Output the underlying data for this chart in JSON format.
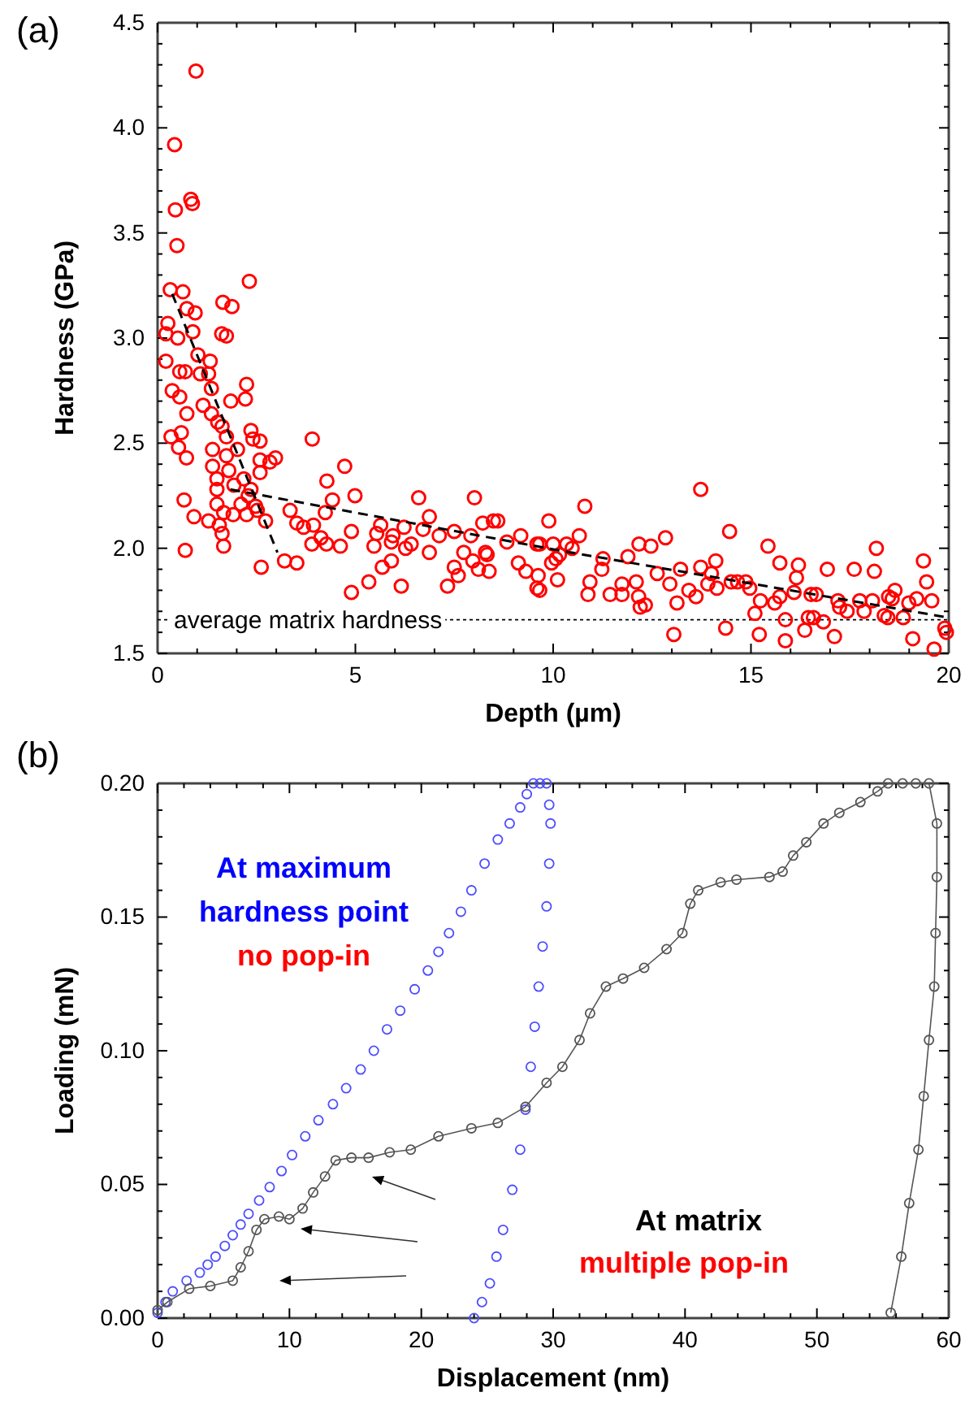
{
  "chart_data": [
    {
      "type": "scatter",
      "xlabel": "Depth (µm)",
      "ylabel": "Hardness (GPa)",
      "annotations": [
        "(a)"
      ],
      "marker": "circle",
      "grid": false,
      "xlim": [
        0,
        20
      ],
      "xticks": [
        0,
        {
          "value": 1,
          "label": null
        },
        {
          "value": 2,
          "label": null
        },
        {
          "value": 3,
          "label": null
        },
        {
          "value": 4,
          "label": null
        },
        5,
        {
          "value": 6,
          "label": null
        },
        {
          "value": 7,
          "label": null
        },
        {
          "value": 8,
          "label": null
        },
        {
          "value": 9,
          "label": null
        },
        10,
        {
          "value": 11,
          "label": null
        },
        {
          "value": 12,
          "label": null
        },
        {
          "value": 13,
          "label": null
        },
        {
          "value": 14,
          "label": null
        },
        15,
        {
          "value": 16,
          "label": null
        },
        {
          "value": 17,
          "label": null
        },
        {
          "value": 18,
          "label": null
        },
        {
          "value": 19,
          "label": null
        },
        20
      ],
      "ylim": [
        1.5,
        4.5
      ],
      "yticks": [
        {
          "value": 1.5,
          "label": "1.5"
        },
        {
          "value": 1.6,
          "label": null
        },
        {
          "value": 1.7,
          "label": null
        },
        {
          "value": 1.8,
          "label": null
        },
        {
          "value": 1.9,
          "label": null
        },
        {
          "value": 2.0,
          "label": "2.0"
        },
        {
          "value": 2.1,
          "label": null
        },
        {
          "value": 2.2,
          "label": null
        },
        {
          "value": 2.3,
          "label": null
        },
        {
          "value": 2.4,
          "label": null
        },
        {
          "value": 2.5,
          "label": "2.5"
        },
        {
          "value": 2.6,
          "label": null
        },
        {
          "value": 2.7,
          "label": null
        },
        {
          "value": 2.8,
          "label": null
        },
        {
          "value": 2.9,
          "label": null
        },
        {
          "value": 3.0,
          "label": "3.0"
        },
        {
          "value": 3.1,
          "label": null
        },
        {
          "value": 3.2,
          "label": null
        },
        {
          "value": 3.3,
          "label": null
        },
        {
          "value": 3.4,
          "label": null
        },
        {
          "value": 3.5,
          "label": "3.5"
        },
        {
          "value": 3.6,
          "label": null
        },
        {
          "value": 3.7,
          "label": null
        },
        {
          "value": 3.8,
          "label": null
        },
        {
          "value": 3.9,
          "label": null
        },
        {
          "value": 4.0,
          "label": "4.0"
        },
        {
          "value": 4.1,
          "label": null
        },
        {
          "value": 4.2,
          "label": null
        },
        {
          "value": 4.3,
          "label": null
        },
        {
          "value": 4.4,
          "label": null
        },
        {
          "value": 4.5,
          "label": "4.5"
        }
      ],
      "ref_lines": [
        {
          "axis": "y",
          "value": 1.66,
          "label": "average matrix hardness",
          "line_style": "dotted",
          "color": "#000000"
        }
      ],
      "series": [
        {
          "color": "#ff0000",
          "x": [
            0.97,
            0.43,
            0.84,
            0.88,
            0.45,
            0.49,
            0.32,
            0.64,
            2.32,
            1.65,
            1.88,
            0.74,
            0.95,
            0.89,
            0.26,
            0.21,
            0.51,
            1.62,
            1.74,
            1.02,
            0.21,
            1.33,
            1.08,
            1.29,
            0.7,
            0.56,
            1.36,
            2.25,
            2.22,
            0.37,
            0.56,
            1.85,
            1.15,
            1.36,
            0.74,
            1.52,
            1.63,
            2.36,
            2.41,
            2.59,
            1.74,
            3.91,
            0.34,
            0.6,
            0.53,
            1.39,
            2.02,
            1.74,
            0.73,
            2.59,
            2.98,
            1.39,
            1.8,
            4.73,
            2.84,
            1.5,
            2.18,
            2.59,
            4.28,
            1.93,
            1.5,
            2.36,
            2.29,
            4.99,
            4.42,
            6.6,
            8.01,
            0.67,
            1.5,
            2.11,
            4.24,
            2.48,
            2.52,
            3.35,
            1.67,
            1.91,
            2.25,
            0.92,
            1.29,
            2.73,
            3.52,
            3.69,
            3.94,
            1.56,
            5.64,
            6.23,
            6.87,
            8.49,
            8.6,
            9.89,
            8.22,
            1.63,
            4.9,
            5.54,
            5.95,
            6.71,
            7.12,
            7.5,
            7.92,
            9.18,
            4.13,
            3.9,
            4.27,
            4.62,
            5.47,
            1.67,
            6.27,
            6.41,
            5.91,
            8.83,
            9.59,
            10.0,
            0.7,
            7.74,
            6.87,
            8.29,
            7.97,
            8.33,
            3.21,
            3.52,
            2.62,
            5.91,
            9.12,
            5.68,
            7.5,
            8.38,
            9.31,
            5.34,
            8.11,
            9.62,
            6.16,
            7.33,
            7.6,
            9.59,
            4.9,
            10.07,
            10.11,
            9.66,
            9.66,
            9.96,
            10.16,
            10.34,
            10.48,
            10.66,
            10.8,
            10.93,
            10.88,
            11.23,
            11.26,
            11.44,
            11.74,
            11.74,
            11.89,
            12.1,
            12.16,
            12.2,
            12.33,
            12.17,
            12.47,
            12.63,
            12.84,
            12.95,
            13.05,
            13.13,
            13.22,
            13.43,
            13.61,
            13.73,
            13.73,
            13.91,
            14.0,
            14.11,
            14.14,
            14.36,
            14.46,
            14.5,
            14.66,
            14.87,
            14.97,
            15.1,
            15.24,
            15.21,
            15.43,
            15.6,
            15.73,
            15.73,
            15.87,
            15.87,
            16.09,
            16.15,
            16.2,
            16.36,
            16.45,
            16.52,
            16.65,
            16.58,
            16.83,
            16.93,
            17.11,
            17.2,
            17.24,
            17.43,
            17.61,
            17.75,
            17.86,
            18.07,
            18.12,
            18.17,
            18.37,
            18.46,
            18.48,
            18.57,
            18.64,
            18.85,
            18.99,
            19.09,
            19.19,
            19.36,
            19.44,
            19.57,
            19.63,
            19.9,
            19.94
          ],
          "values": [
            4.27,
            3.92,
            3.66,
            3.64,
            3.61,
            3.44,
            3.23,
            3.22,
            3.27,
            3.17,
            3.15,
            3.14,
            3.12,
            3.03,
            3.07,
            3.02,
            3.0,
            3.02,
            3.01,
            2.92,
            2.89,
            2.89,
            2.83,
            2.83,
            2.84,
            2.84,
            2.76,
            2.78,
            2.71,
            2.75,
            2.72,
            2.7,
            2.68,
            2.64,
            2.64,
            2.6,
            2.58,
            2.56,
            2.52,
            2.51,
            2.53,
            2.52,
            2.53,
            2.55,
            2.48,
            2.47,
            2.47,
            2.44,
            2.43,
            2.42,
            2.43,
            2.39,
            2.37,
            2.39,
            2.41,
            2.33,
            2.33,
            2.36,
            2.32,
            2.3,
            2.28,
            2.28,
            2.25,
            2.25,
            2.23,
            2.24,
            2.24,
            2.23,
            2.21,
            2.21,
            2.17,
            2.2,
            2.18,
            2.18,
            2.17,
            2.16,
            2.16,
            2.15,
            2.13,
            2.13,
            2.12,
            2.1,
            2.11,
            2.11,
            2.11,
            2.1,
            2.15,
            2.13,
            2.13,
            2.13,
            2.12,
            2.07,
            2.08,
            2.07,
            2.06,
            2.09,
            2.06,
            2.08,
            2.06,
            2.06,
            2.05,
            2.02,
            2.02,
            2.01,
            2.01,
            2.01,
            2.0,
            2.02,
            2.03,
            2.03,
            2.02,
            2.02,
            1.99,
            1.98,
            1.98,
            1.98,
            1.94,
            1.97,
            1.94,
            1.93,
            1.91,
            1.94,
            1.93,
            1.91,
            1.91,
            1.89,
            1.89,
            1.84,
            1.9,
            1.87,
            1.82,
            1.82,
            1.87,
            1.81,
            1.79,
            1.95,
            1.85,
            1.8,
            2.02,
            1.93,
            1.97,
            2.02,
            2.0,
            2.06,
            2.2,
            1.84,
            1.78,
            1.9,
            1.95,
            1.78,
            1.83,
            1.78,
            1.96,
            1.84,
            1.77,
            1.72,
            1.73,
            2.02,
            2.01,
            1.88,
            2.05,
            1.83,
            1.59,
            1.74,
            1.9,
            1.8,
            1.77,
            2.28,
            1.91,
            1.83,
            1.88,
            1.94,
            1.81,
            1.62,
            2.08,
            1.84,
            1.84,
            1.84,
            1.81,
            1.69,
            1.75,
            1.59,
            2.01,
            1.74,
            1.93,
            1.77,
            1.66,
            1.56,
            1.79,
            1.86,
            1.92,
            1.61,
            1.67,
            1.78,
            1.78,
            1.67,
            1.65,
            1.9,
            1.58,
            1.75,
            1.72,
            1.7,
            1.9,
            1.75,
            1.7,
            1.75,
            1.89,
            2.0,
            1.68,
            1.67,
            1.77,
            1.76,
            1.8,
            1.67,
            1.74,
            1.57,
            1.76,
            1.94,
            1.84,
            1.75,
            1.52,
            1.62,
            1.6
          ]
        },
        {
          "type": "line",
          "color": "#000000",
          "line_style": "dashed",
          "marker": "none",
          "x": [
            0.37,
            3.03
          ],
          "values": [
            3.21,
            1.98
          ]
        },
        {
          "type": "line",
          "color": "#000000",
          "line_style": "dashed",
          "marker": "none",
          "x": [
            1.84,
            10.14,
            20.0
          ],
          "values": [
            2.28,
            1.99,
            1.67
          ]
        }
      ]
    },
    {
      "type": "scatter",
      "xlabel": "Displacement (nm)",
      "ylabel": "Loading (mN)",
      "annotations": [
        "(b)",
        "At maximum",
        "hardness point",
        "no pop-in",
        "At matrix",
        "multiple pop-in"
      ],
      "marker": "circle",
      "grid": false,
      "xlim": [
        0,
        60
      ],
      "xticks": [
        0,
        {
          "value": 2,
          "label": null
        },
        {
          "value": 4,
          "label": null
        },
        {
          "value": 6,
          "label": null
        },
        {
          "value": 8,
          "label": null
        },
        10,
        {
          "value": 12,
          "label": null
        },
        {
          "value": 14,
          "label": null
        },
        {
          "value": 16,
          "label": null
        },
        {
          "value": 18,
          "label": null
        },
        20,
        {
          "value": 22,
          "label": null
        },
        {
          "value": 24,
          "label": null
        },
        {
          "value": 26,
          "label": null
        },
        {
          "value": 28,
          "label": null
        },
        30,
        {
          "value": 32,
          "label": null
        },
        {
          "value": 34,
          "label": null
        },
        {
          "value": 36,
          "label": null
        },
        {
          "value": 38,
          "label": null
        },
        40,
        {
          "value": 42,
          "label": null
        },
        {
          "value": 44,
          "label": null
        },
        {
          "value": 46,
          "label": null
        },
        {
          "value": 48,
          "label": null
        },
        50,
        {
          "value": 52,
          "label": null
        },
        {
          "value": 54,
          "label": null
        },
        {
          "value": 56,
          "label": null
        },
        {
          "value": 58,
          "label": null
        },
        60
      ],
      "ylim": [
        0,
        0.2
      ],
      "yticks": [
        {
          "value": 0,
          "label": "0.00"
        },
        {
          "value": 0.01,
          "label": null
        },
        {
          "value": 0.02,
          "label": null
        },
        {
          "value": 0.03,
          "label": null
        },
        {
          "value": 0.04,
          "label": null
        },
        {
          "value": 0.05,
          "label": "0.05"
        },
        {
          "value": 0.06,
          "label": null
        },
        {
          "value": 0.07,
          "label": null
        },
        {
          "value": 0.08,
          "label": null
        },
        {
          "value": 0.09,
          "label": null
        },
        {
          "value": 0.1,
          "label": "0.10"
        },
        {
          "value": 0.11,
          "label": null
        },
        {
          "value": 0.12,
          "label": null
        },
        {
          "value": 0.13,
          "label": null
        },
        {
          "value": 0.14,
          "label": null
        },
        {
          "value": 0.15,
          "label": "0.15"
        },
        {
          "value": 0.16,
          "label": null
        },
        {
          "value": 0.17,
          "label": null
        },
        {
          "value": 0.18,
          "label": null
        },
        {
          "value": 0.19,
          "label": null
        },
        {
          "value": 0.2,
          "label": "0.20"
        }
      ],
      "series": [
        {
          "color": "#4d4dff",
          "x": [
            0,
            0.6,
            1.15,
            2.2,
            3.2,
            3.8,
            4.4,
            5.1,
            5.7,
            6.3,
            6.9,
            7.7,
            8.5,
            9.4,
            10.2,
            11.2,
            12.2,
            13.3,
            14.3,
            15.4,
            16.4,
            17.4,
            18.4,
            19.5,
            20.5,
            21.3,
            22.1,
            23.0,
            23.8,
            24.8,
            25.8,
            26.7,
            27.5,
            28.0,
            28.5,
            29.0,
            29.5,
            29.7,
            29.8,
            29.7,
            29.5,
            29.2,
            28.9,
            28.6,
            28.3,
            27.9,
            27.5,
            26.9,
            26.2,
            25.7,
            25.2,
            24.6,
            24.0
          ],
          "values": [
            0.002,
            0.006,
            0.01,
            0.014,
            0.017,
            0.02,
            0.023,
            0.027,
            0.031,
            0.035,
            0.039,
            0.044,
            0.049,
            0.055,
            0.061,
            0.068,
            0.074,
            0.08,
            0.086,
            0.093,
            0.1,
            0.108,
            0.115,
            0.123,
            0.13,
            0.137,
            0.144,
            0.152,
            0.16,
            0.17,
            0.179,
            0.185,
            0.191,
            0.196,
            0.2,
            0.2,
            0.2,
            0.192,
            0.185,
            0.17,
            0.154,
            0.139,
            0.124,
            0.109,
            0.094,
            0.078,
            0.063,
            0.048,
            0.033,
            0.023,
            0.013,
            0.006,
            0.0
          ]
        },
        {
          "type": "line",
          "color": "#555555",
          "x": [
            0,
            0.74,
            2.4,
            4.0,
            5.7,
            6.3,
            6.9,
            7.5,
            8.1,
            9.2,
            10.0,
            11.0,
            11.8,
            12.7,
            13.5,
            14.7,
            16.0,
            17.6,
            19.2,
            21.3,
            23.8,
            25.8,
            27.9,
            29.5,
            30.7,
            32.0,
            32.8,
            34.0,
            35.3,
            36.9,
            38.6,
            39.8,
            40.4,
            41.0,
            42.7,
            43.9,
            46.4,
            47.4,
            48.2,
            49.2,
            50.5,
            51.7,
            53.3,
            54.6,
            55.4,
            56.5,
            57.5,
            58.5,
            59.1,
            59.1,
            59.0,
            58.9,
            58.5,
            58.1,
            57.7,
            57.0,
            56.4,
            55.6
          ],
          "values": [
            0.003,
            0.006,
            0.011,
            0.012,
            0.014,
            0.019,
            0.025,
            0.033,
            0.037,
            0.038,
            0.037,
            0.041,
            0.047,
            0.053,
            0.059,
            0.06,
            0.06,
            0.062,
            0.063,
            0.068,
            0.071,
            0.073,
            0.079,
            0.088,
            0.094,
            0.104,
            0.114,
            0.124,
            0.127,
            0.131,
            0.138,
            0.144,
            0.155,
            0.16,
            0.163,
            0.164,
            0.165,
            0.167,
            0.173,
            0.178,
            0.185,
            0.189,
            0.193,
            0.197,
            0.2,
            0.2,
            0.2,
            0.2,
            0.185,
            0.165,
            0.144,
            0.124,
            0.104,
            0.083,
            0.063,
            0.043,
            0.023,
            0.002
          ]
        }
      ]
    }
  ]
}
